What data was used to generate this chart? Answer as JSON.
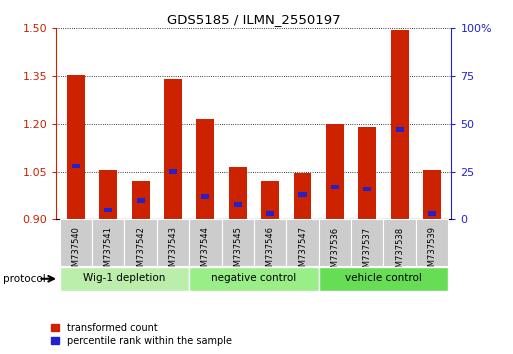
{
  "title": "GDS5185 / ILMN_2550197",
  "samples": [
    "GSM737540",
    "GSM737541",
    "GSM737542",
    "GSM737543",
    "GSM737544",
    "GSM737545",
    "GSM737546",
    "GSM737547",
    "GSM737536",
    "GSM737537",
    "GSM737538",
    "GSM737539"
  ],
  "transformed_count": [
    1.355,
    1.055,
    1.02,
    1.34,
    1.215,
    1.065,
    1.02,
    1.045,
    1.2,
    1.19,
    1.495,
    1.055
  ],
  "percentile_rank": [
    28,
    5,
    10,
    25,
    12,
    8,
    3,
    13,
    17,
    16,
    47,
    3
  ],
  "ylim_left": [
    0.9,
    1.5
  ],
  "yticks_left": [
    0.9,
    1.05,
    1.2,
    1.35,
    1.5
  ],
  "ylim_right": [
    0,
    100
  ],
  "yticks_right": [
    0,
    25,
    50,
    75,
    100
  ],
  "groups": [
    {
      "label": "Wig-1 depletion",
      "start": 0,
      "end": 4,
      "color": "#BBEEAA"
    },
    {
      "label": "negative control",
      "start": 4,
      "end": 8,
      "color": "#99EE88"
    },
    {
      "label": "vehicle control",
      "start": 8,
      "end": 12,
      "color": "#66DD55"
    }
  ],
  "bar_width": 0.55,
  "blue_bar_width": 0.25,
  "bar_color_red": "#CC2200",
  "bar_color_blue": "#2222CC",
  "tick_bg_color": "#CCCCCC",
  "legend_red_label": "transformed count",
  "legend_blue_label": "percentile rank within the sample",
  "left_axis_color": "#CC2200",
  "right_axis_color": "#2222CC",
  "baseline": 0.9
}
